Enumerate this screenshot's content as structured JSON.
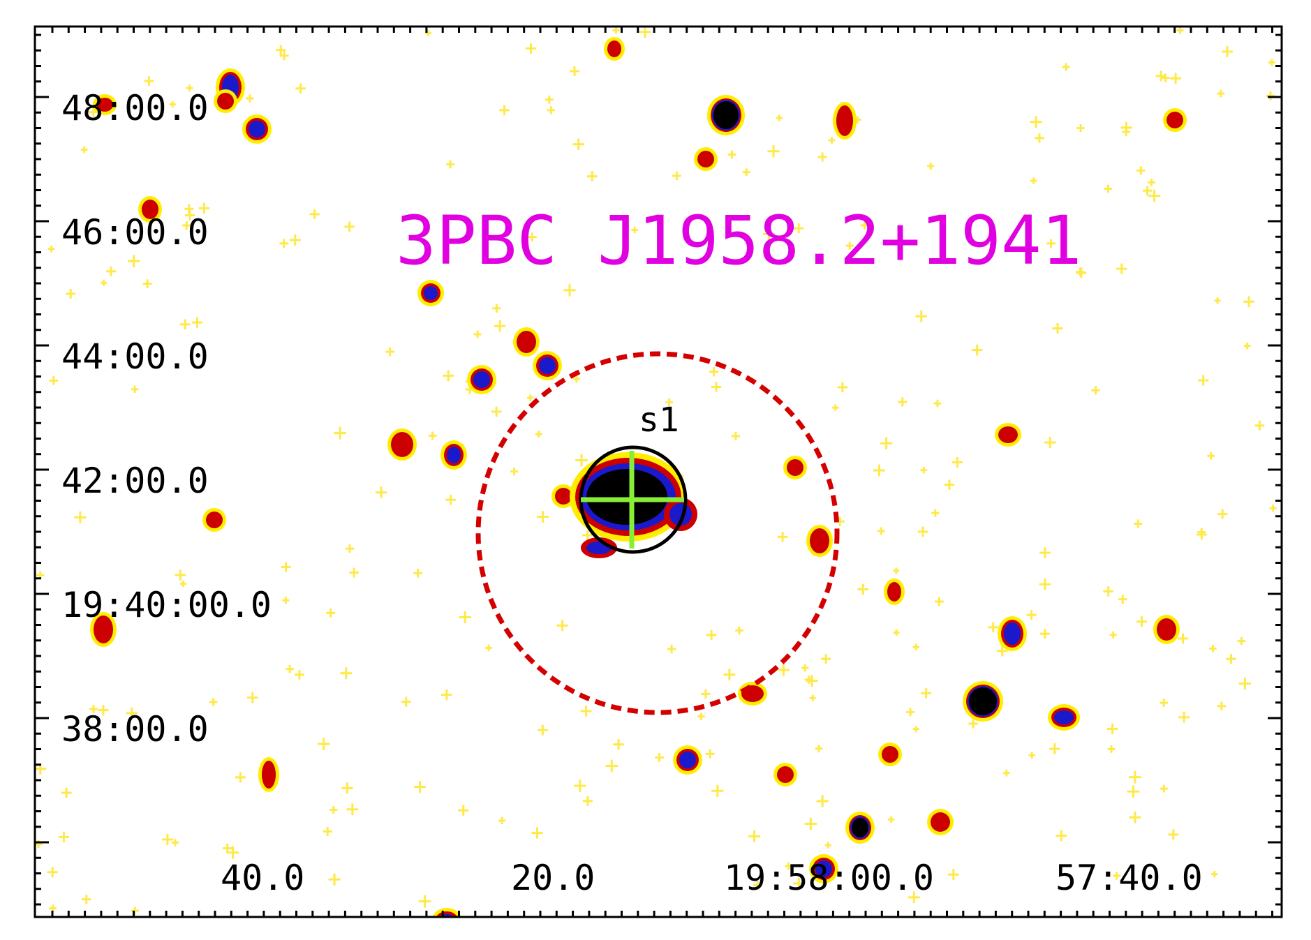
{
  "figure": {
    "title": "3PBC J1958.2+1941",
    "source_label": "s1",
    "dec_labels": [
      "48:00.0",
      "46:00.0",
      "44:00.0",
      "42:00.0",
      "19:40:00.0",
      "38:00.0"
    ],
    "ra_labels": [
      "40.0",
      "20.0",
      "19:58:00.0",
      "57:40.0"
    ]
  },
  "colors": {
    "title": "#e000e0",
    "error_circle": "#d40000",
    "source_circle": "#000000",
    "crosshair": "#88ee33",
    "halo": "#ffee00",
    "ring": "#cc0000",
    "core": "#1a1acc",
    "peak": "#000000"
  }
}
